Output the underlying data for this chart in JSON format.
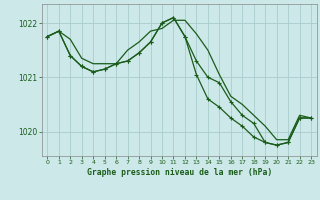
{
  "title": "Graphe pression niveau de la mer (hPa)",
  "background_color": "#cce8e8",
  "grid_color": "#aacccc",
  "line_color": "#1a5c1a",
  "marker_color": "#1a5c1a",
  "xlim": [
    -0.5,
    23.5
  ],
  "ylim": [
    1019.55,
    1022.35
  ],
  "yticks": [
    1020,
    1021,
    1022
  ],
  "xticks": [
    0,
    1,
    2,
    3,
    4,
    5,
    6,
    7,
    8,
    9,
    10,
    11,
    12,
    13,
    14,
    15,
    16,
    17,
    18,
    19,
    20,
    21,
    22,
    23
  ],
  "series1_y": [
    1021.75,
    1021.85,
    1021.7,
    1021.35,
    1021.25,
    1021.25,
    1021.25,
    1021.5,
    1021.65,
    1021.85,
    1021.9,
    1022.05,
    1022.05,
    1021.8,
    1021.5,
    1021.05,
    1020.65,
    1020.5,
    1020.3,
    1020.1,
    1019.85,
    1019.85,
    1020.3,
    1020.25
  ],
  "series2_y": [
    1021.75,
    1021.85,
    1021.4,
    1021.2,
    1021.1,
    1021.15,
    1021.25,
    1021.3,
    1021.45,
    1021.65,
    1022.0,
    1022.1,
    1021.75,
    1021.3,
    1021.0,
    1020.9,
    1020.55,
    1020.3,
    1020.15,
    1019.8,
    1019.75,
    1019.8,
    1020.25,
    1020.25
  ],
  "series3_y": [
    1021.75,
    1021.85,
    1021.4,
    1021.2,
    1021.1,
    1021.15,
    1021.25,
    1021.3,
    1021.45,
    1021.65,
    1022.0,
    1022.1,
    1021.75,
    1021.05,
    1020.6,
    1020.45,
    1020.25,
    1020.1,
    1019.9,
    1019.8,
    1019.75,
    1019.8,
    1020.25,
    1020.25
  ]
}
